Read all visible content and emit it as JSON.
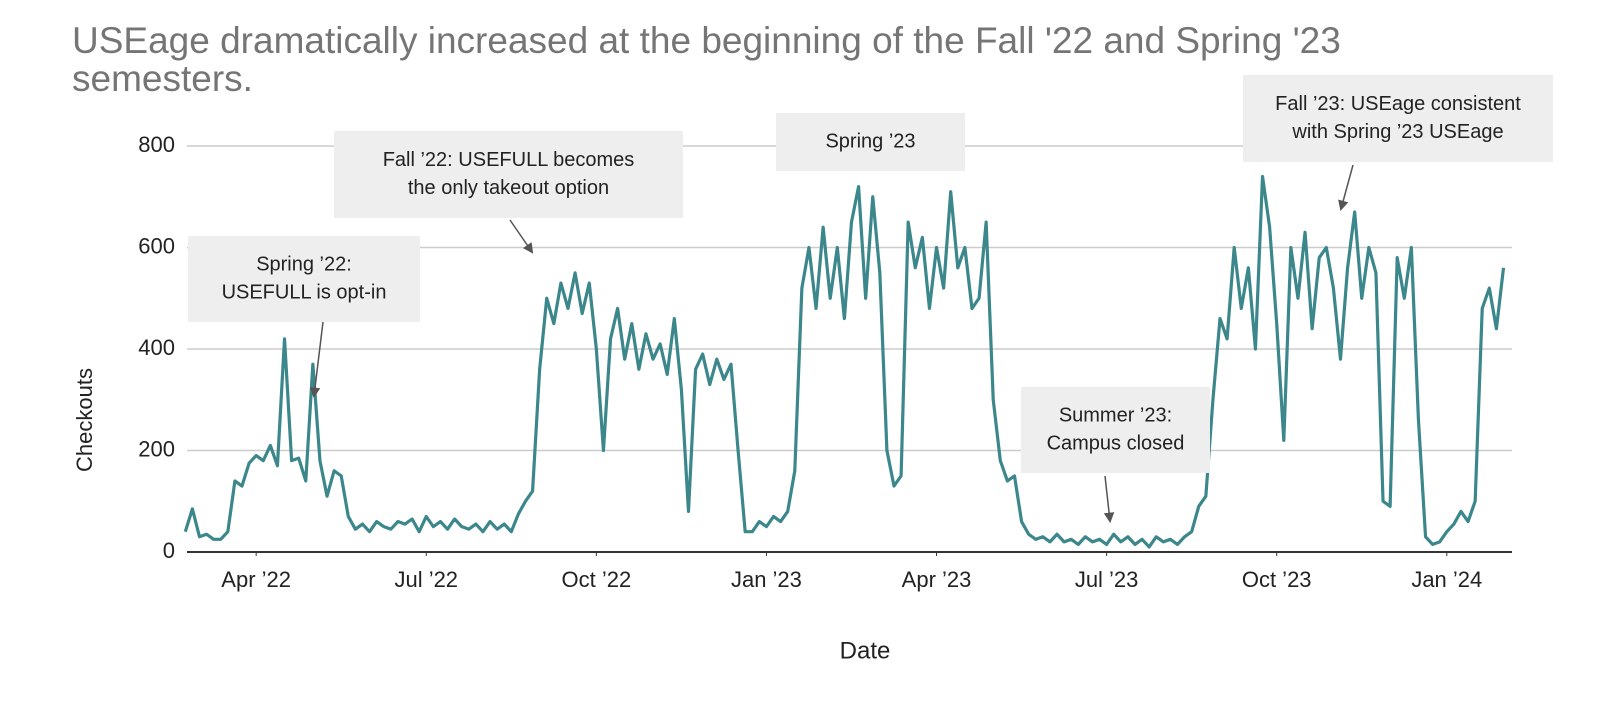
{
  "chart_data": {
    "type": "line",
    "title": "USEage dramatically increased at the beginning of the Fall '22 and Spring '23 semesters.",
    "xlabel": "Date",
    "ylabel": "Checkouts",
    "xlim": [
      1.78,
      25.15
    ],
    "ylim": [
      0,
      800
    ],
    "xticks": [
      {
        "value": 3,
        "label": "Apr ’22"
      },
      {
        "value": 6,
        "label": "Jul ’22"
      },
      {
        "value": 9,
        "label": "Oct ’22"
      },
      {
        "value": 12,
        "label": "Jan ’23"
      },
      {
        "value": 15,
        "label": "Apr ’23"
      },
      {
        "value": 18,
        "label": "Jul ’23"
      },
      {
        "value": 21,
        "label": "Oct ’23"
      },
      {
        "value": 24,
        "label": "Jan ’24"
      }
    ],
    "yticks": [
      0,
      200,
      400,
      600,
      800
    ],
    "grid": true,
    "x": [
      1.75,
      1.875,
      2,
      2.125,
      2.25,
      2.375,
      2.5,
      2.625,
      2.75,
      2.875,
      3,
      3.125,
      3.25,
      3.375,
      3.5,
      3.625,
      3.75,
      3.875,
      4,
      4.125,
      4.25,
      4.375,
      4.5,
      4.625,
      4.75,
      4.875,
      5,
      5.125,
      5.25,
      5.375,
      5.5,
      5.625,
      5.75,
      5.875,
      6,
      6.125,
      6.25,
      6.375,
      6.5,
      6.625,
      6.75,
      6.875,
      7,
      7.125,
      7.25,
      7.375,
      7.5,
      7.625,
      7.75,
      7.875,
      8,
      8.125,
      8.25,
      8.375,
      8.5,
      8.625,
      8.75,
      8.875,
      9,
      9.125,
      9.25,
      9.375,
      9.5,
      9.625,
      9.75,
      9.875,
      10,
      10.125,
      10.25,
      10.375,
      10.5,
      10.625,
      10.75,
      10.875,
      11,
      11.125,
      11.25,
      11.375,
      11.5,
      11.625,
      11.75,
      11.875,
      12,
      12.125,
      12.25,
      12.375,
      12.5,
      12.625,
      12.75,
      12.875,
      13,
      13.125,
      13.25,
      13.375,
      13.5,
      13.625,
      13.75,
      13.875,
      14,
      14.125,
      14.25,
      14.375,
      14.5,
      14.625,
      14.75,
      14.875,
      15,
      15.125,
      15.25,
      15.375,
      15.5,
      15.625,
      15.75,
      15.875,
      16,
      16.125,
      16.25,
      16.375,
      16.5,
      16.625,
      16.75,
      16.875,
      17,
      17.125,
      17.25,
      17.375,
      17.5,
      17.625,
      17.75,
      17.875,
      18,
      18.125,
      18.25,
      18.375,
      18.5,
      18.625,
      18.75,
      18.875,
      19,
      19.125,
      19.25,
      19.375,
      19.5,
      19.625,
      19.75,
      19.875,
      20,
      20.125,
      20.25,
      20.375,
      20.5,
      20.625,
      20.75,
      20.875,
      21,
      21.125,
      21.25,
      21.375,
      21.5,
      21.625,
      21.75,
      21.875,
      22,
      22.125,
      22.25,
      22.375,
      22.5,
      22.625,
      22.75,
      22.875,
      23,
      23.125,
      23.25,
      23.375,
      23.5,
      23.625,
      23.75,
      23.875,
      24,
      24.125,
      24.25,
      24.375,
      24.5,
      24.625,
      24.75,
      24.875,
      25
    ],
    "series": [
      {
        "name": "Checkouts",
        "color": "#3b878b",
        "values": [
          40,
          85,
          30,
          35,
          25,
          25,
          40,
          140,
          130,
          175,
          190,
          180,
          210,
          170,
          420,
          180,
          185,
          140,
          370,
          180,
          110,
          160,
          150,
          70,
          45,
          55,
          40,
          60,
          50,
          45,
          60,
          55,
          65,
          40,
          70,
          50,
          60,
          45,
          65,
          50,
          45,
          55,
          40,
          60,
          45,
          55,
          40,
          75,
          100,
          120,
          360,
          500,
          450,
          530,
          480,
          550,
          470,
          530,
          400,
          200,
          420,
          480,
          380,
          450,
          360,
          430,
          380,
          410,
          350,
          460,
          320,
          80,
          360,
          390,
          330,
          380,
          340,
          370,
          200,
          40,
          40,
          60,
          50,
          70,
          60,
          80,
          160,
          520,
          600,
          480,
          640,
          500,
          600,
          460,
          650,
          720,
          500,
          700,
          550,
          200,
          130,
          150,
          650,
          560,
          620,
          480,
          600,
          520,
          710,
          560,
          600,
          480,
          500,
          650,
          300,
          180,
          140,
          150,
          60,
          35,
          25,
          30,
          20,
          35,
          20,
          25,
          15,
          30,
          20,
          25,
          15,
          35,
          20,
          30,
          15,
          25,
          10,
          30,
          20,
          25,
          15,
          30,
          40,
          90,
          110,
          300,
          460,
          420,
          600,
          480,
          560,
          400,
          740,
          640,
          450,
          220,
          600,
          500,
          630,
          440,
          580,
          600,
          520,
          380,
          560,
          670,
          500,
          600,
          550,
          100,
          90,
          580,
          500,
          600,
          260,
          30,
          15,
          20,
          40,
          55,
          80,
          60,
          100,
          480,
          520,
          440,
          560
        ]
      }
    ],
    "annotations": [
      {
        "lines": [
          "Spring ’22:",
          "USEFULL is opt-in"
        ]
      },
      {
        "lines": [
          "Fall ’22: USEFULL becomes",
          "the only takeout option"
        ]
      },
      {
        "lines": [
          "Spring ’23"
        ]
      },
      {
        "lines": [
          "Summer ’23:",
          "Campus closed"
        ]
      },
      {
        "lines": [
          "Fall ’23: USEage consistent",
          "with Spring ’23 USEage"
        ]
      }
    ]
  }
}
